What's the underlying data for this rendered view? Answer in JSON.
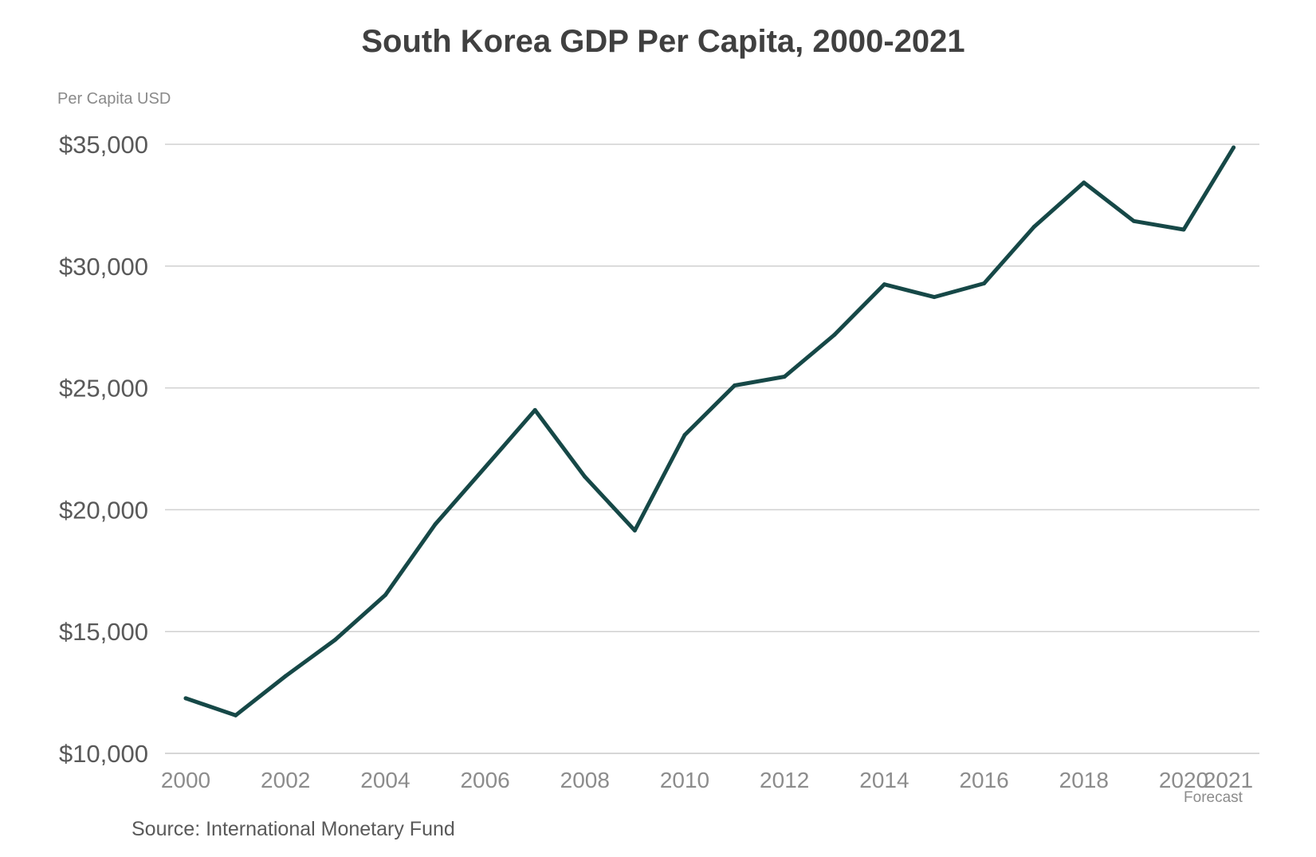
{
  "chart_data": {
    "type": "line",
    "title": "South Korea GDP Per Capita, 2000-2021",
    "ylabel": "Per Capita USD",
    "xlabel": "",
    "x": [
      2000,
      2001,
      2002,
      2003,
      2004,
      2005,
      2006,
      2007,
      2008,
      2009,
      2010,
      2011,
      2012,
      2013,
      2014,
      2015,
      2016,
      2017,
      2018,
      2019,
      2020,
      2021
    ],
    "series": [
      {
        "values": [
          12260,
          11560,
          13170,
          14670,
          16500,
          19400,
          21740,
          24090,
          21350,
          19150,
          23070,
          25100,
          25460,
          27180,
          29250,
          28730,
          29290,
          31610,
          33430,
          31850,
          31500,
          34870
        ]
      }
    ],
    "ylim": [
      10000,
      35000
    ],
    "xlim": [
      2000,
      2021.5
    ],
    "y_ticks": [
      10000,
      15000,
      20000,
      25000,
      30000,
      35000
    ],
    "y_tick_labels": [
      "$10,000",
      "$15,000",
      "$20,000",
      "$25,000",
      "$30,000",
      "$35,000"
    ],
    "x_ticks": [
      2000,
      2002,
      2004,
      2006,
      2008,
      2010,
      2012,
      2014,
      2016,
      2018,
      2020,
      2021
    ],
    "x_tick_labels": [
      "2000",
      "2002",
      "2004",
      "2006",
      "2008",
      "2010",
      "2012",
      "2014",
      "2016",
      "2018",
      "2020",
      "2021"
    ],
    "forecast_label": "Forecast",
    "forecast_year": 2021,
    "source": "Source: International Monetary Fund",
    "grid": true,
    "legend": "none",
    "colors": {
      "line": "#164847",
      "grid": "#d0d0d0",
      "title": "#404040"
    }
  }
}
